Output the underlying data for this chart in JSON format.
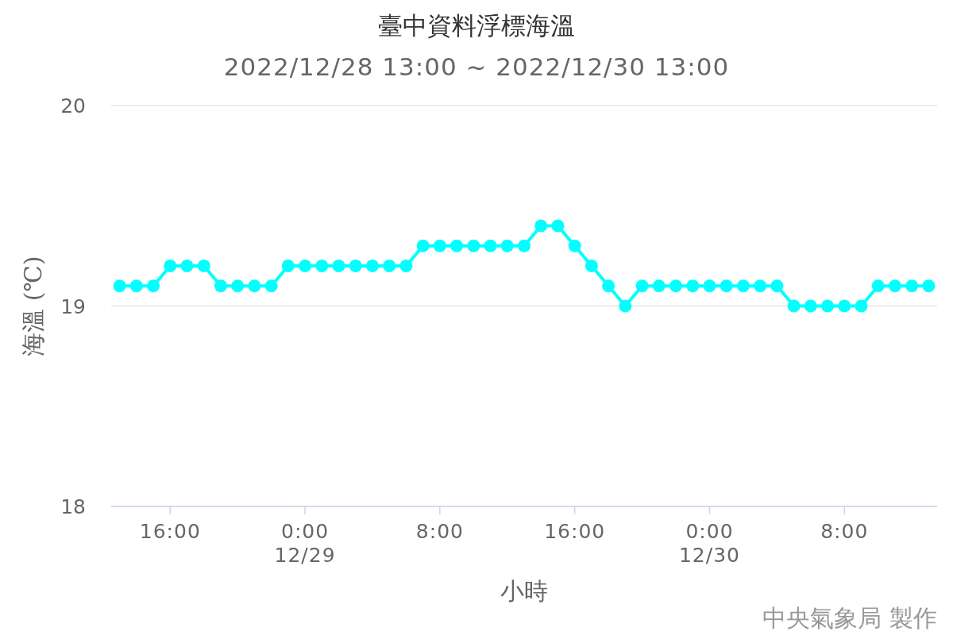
{
  "chart_data": {
    "type": "line",
    "title": "臺中資料浮標海溫",
    "subtitle": "2022/12/28 13:00 ~ 2022/12/30 13:00",
    "xlabel": "小時",
    "ylabel": "海溫 (℃)",
    "annotations": [
      "中央氣象局 製作"
    ],
    "x": [
      "2022-12-28T13:00",
      "2022-12-28T14:00",
      "2022-12-28T15:00",
      "2022-12-28T16:00",
      "2022-12-28T17:00",
      "2022-12-28T18:00",
      "2022-12-28T19:00",
      "2022-12-28T20:00",
      "2022-12-28T21:00",
      "2022-12-28T22:00",
      "2022-12-28T23:00",
      "2022-12-29T00:00",
      "2022-12-29T01:00",
      "2022-12-29T02:00",
      "2022-12-29T03:00",
      "2022-12-29T04:00",
      "2022-12-29T05:00",
      "2022-12-29T06:00",
      "2022-12-29T07:00",
      "2022-12-29T08:00",
      "2022-12-29T09:00",
      "2022-12-29T10:00",
      "2022-12-29T11:00",
      "2022-12-29T12:00",
      "2022-12-29T13:00",
      "2022-12-29T14:00",
      "2022-12-29T15:00",
      "2022-12-29T16:00",
      "2022-12-29T17:00",
      "2022-12-29T18:00",
      "2022-12-29T19:00",
      "2022-12-29T20:00",
      "2022-12-29T21:00",
      "2022-12-29T22:00",
      "2022-12-29T23:00",
      "2022-12-30T00:00",
      "2022-12-30T01:00",
      "2022-12-30T02:00",
      "2022-12-30T03:00",
      "2022-12-30T04:00",
      "2022-12-30T05:00",
      "2022-12-30T06:00",
      "2022-12-30T07:00",
      "2022-12-30T08:00",
      "2022-12-30T09:00",
      "2022-12-30T10:00",
      "2022-12-30T11:00",
      "2022-12-30T12:00",
      "2022-12-30T13:00"
    ],
    "values": [
      19.1,
      19.1,
      19.1,
      19.2,
      19.2,
      19.2,
      19.1,
      19.1,
      19.1,
      19.1,
      19.2,
      19.2,
      19.2,
      19.2,
      19.2,
      19.2,
      19.2,
      19.2,
      19.3,
      19.3,
      19.3,
      19.3,
      19.3,
      19.3,
      19.3,
      19.4,
      19.4,
      19.3,
      19.2,
      19.1,
      19.0,
      19.1,
      19.1,
      19.1,
      19.1,
      19.1,
      19.1,
      19.1,
      19.1,
      19.1,
      19.0,
      19.0,
      19.0,
      19.0,
      19.0,
      19.1,
      19.1,
      19.1,
      19.1
    ],
    "color": "#00ffff",
    "marker": "circle",
    "line_style": "solid",
    "grid": "y",
    "legend": false,
    "xlim": [
      "2022-12-28T12:30",
      "2022-12-30T13:30"
    ],
    "xticks": [
      {
        "value": "2022-12-28T16:00",
        "label": "16:00"
      },
      {
        "value": "2022-12-29T00:00",
        "label": "0:00\n12/29"
      },
      {
        "value": "2022-12-29T08:00",
        "label": "8:00"
      },
      {
        "value": "2022-12-29T16:00",
        "label": "16:00"
      },
      {
        "value": "2022-12-30T00:00",
        "label": "0:00\n12/30"
      },
      {
        "value": "2022-12-30T08:00",
        "label": "8:00"
      }
    ],
    "ylim": [
      18,
      20
    ],
    "yticks": [
      18,
      19,
      20
    ]
  }
}
